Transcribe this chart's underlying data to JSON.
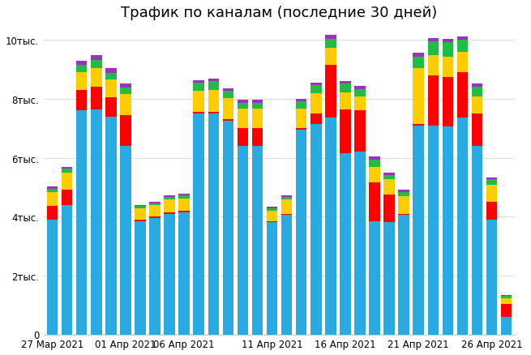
{
  "title": "Трафик по каналам (последние 30 дней)",
  "xtick_labels": [
    "27 Мар 2021",
    "01 Апр 2021",
    "06 Апр 2021",
    "11 Апр 2021",
    "16 Апр 2021",
    "21 Апр 2021",
    "26 Апр 2021"
  ],
  "xtick_positions": [
    0,
    5,
    9,
    15,
    20,
    25,
    30
  ],
  "blue": [
    3900,
    4400,
    7600,
    7650,
    7400,
    6400,
    3850,
    3950,
    4100,
    4150,
    7500,
    7500,
    7250,
    6400,
    6400,
    3800,
    4050,
    6950,
    7150,
    7350,
    6150,
    6200,
    3850,
    3800,
    4050,
    7100,
    7100,
    7050,
    7350,
    6400,
    3900,
    580
  ],
  "red": [
    450,
    500,
    700,
    750,
    650,
    1050,
    50,
    50,
    50,
    50,
    50,
    50,
    50,
    600,
    600,
    50,
    50,
    50,
    350,
    1800,
    1500,
    1400,
    1300,
    950,
    50,
    50,
    1700,
    1700,
    1550,
    1100,
    600,
    450
  ],
  "yellow": [
    480,
    600,
    600,
    650,
    600,
    700,
    380,
    380,
    420,
    420,
    720,
    760,
    720,
    680,
    680,
    350,
    480,
    680,
    680,
    580,
    570,
    480,
    530,
    520,
    580,
    1900,
    680,
    680,
    680,
    580,
    580,
    200
  ],
  "green": [
    120,
    120,
    240,
    260,
    240,
    240,
    70,
    70,
    90,
    90,
    280,
    290,
    240,
    190,
    190,
    90,
    90,
    240,
    290,
    290,
    290,
    260,
    260,
    140,
    140,
    380,
    480,
    480,
    430,
    340,
    190,
    70
  ],
  "purple": [
    70,
    70,
    140,
    170,
    140,
    120,
    40,
    40,
    55,
    55,
    90,
    90,
    90,
    90,
    90,
    55,
    55,
    90,
    90,
    140,
    90,
    90,
    90,
    90,
    90,
    140,
    110,
    110,
    110,
    90,
    70,
    40
  ],
  "colors": {
    "blue": "#29ABE2",
    "red": "#FF0000",
    "yellow": "#FFCC00",
    "green": "#22BB44",
    "purple": "#9933BB"
  },
  "ylim": [
    0,
    10500
  ],
  "yticks": [
    0,
    2000,
    4000,
    6000,
    8000,
    10000
  ],
  "ytick_labels": [
    "0",
    "2тыс.",
    "4тыс.",
    "6тыс.",
    "8тыс.",
    "10тыс."
  ],
  "background_color": "#ffffff",
  "title_fontsize": 13
}
